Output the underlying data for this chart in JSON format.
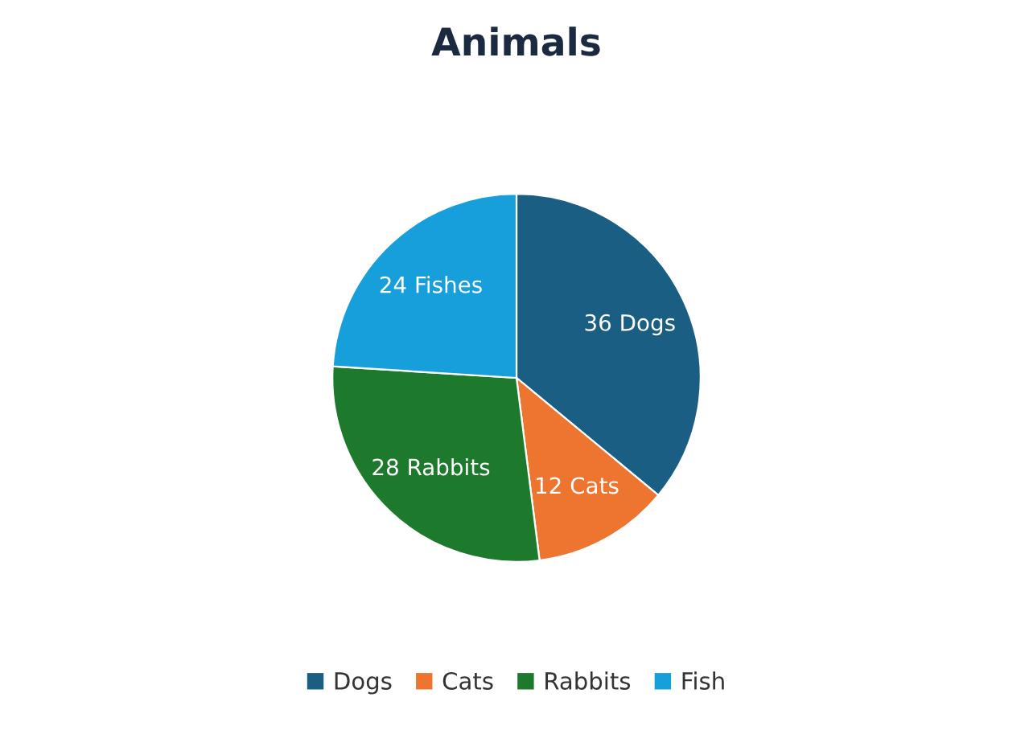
{
  "chart_data": {
    "type": "pie",
    "title": "Animals",
    "categories": [
      "Dogs",
      "Cats",
      "Rabbits",
      "Fish"
    ],
    "values": [
      36,
      12,
      28,
      24
    ],
    "colors": [
      "#1a5e84",
      "#ee7530",
      "#1d7a2c",
      "#179fdb"
    ],
    "value_labels": [
      "36 Dogs",
      "12 Cats",
      "28 Rabbits",
      "24 Fishes"
    ],
    "legend": "bottom"
  }
}
